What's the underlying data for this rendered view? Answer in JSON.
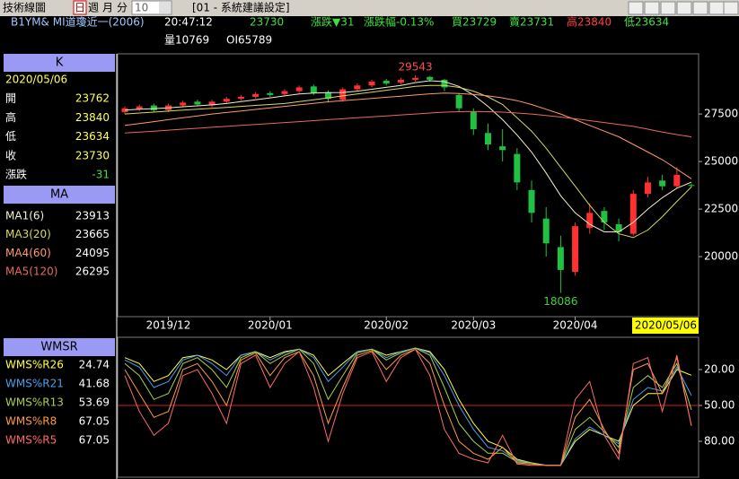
{
  "toolbar": {
    "title": "技術線圖",
    "day": "日",
    "week": "週",
    "month": "月",
    "minute": "分",
    "count": "10",
    "tab": "[01 - 系統建議設定]"
  },
  "quote": {
    "symbol": "B1YM& MI道瓊近一(2006)",
    "time": "20:47:12",
    "last": "23730",
    "change": "漲跌▼31",
    "change_pct": "漲跌幅-0.13%",
    "bid": "買23729",
    "ask": "賣23731",
    "high": "高23840",
    "low": "低23634",
    "volume": "量10769",
    "oi": "OI65789"
  },
  "k_panel": {
    "header": "K",
    "labels": [
      "開",
      "高",
      "低",
      "收",
      "漲跌"
    ],
    "change": -31
  },
  "ma_panel": {
    "header": "MA"
  },
  "wms_panel": {
    "header": "WMSR"
  },
  "chart_data": [
    {
      "type": "candlestick",
      "up_color": "#ff3030",
      "down_color": "#20c040",
      "categories": [
        null,
        null,
        null,
        "2019/12",
        null,
        null,
        null,
        null,
        null,
        null,
        "2020/01",
        null,
        null,
        null,
        null,
        null,
        null,
        null,
        "2020/02",
        null,
        null,
        null,
        null,
        null,
        "2020/03",
        null,
        null,
        null,
        null,
        null,
        null,
        "2020/04",
        null,
        null,
        null,
        null,
        null,
        null,
        null,
        "2020/05/06"
      ],
      "open": [
        27600,
        27750,
        27950,
        27700,
        27950,
        28150,
        27950,
        28150,
        28300,
        28400,
        28600,
        28550,
        28700,
        28950,
        28650,
        28250,
        28800,
        29000,
        29250,
        29150,
        29300,
        29450,
        29300,
        28500,
        27600,
        26500,
        25800,
        25400,
        23500,
        22000,
        20500,
        19200,
        21500,
        22400,
        21700,
        21200,
        23300,
        24000,
        23700,
        23762
      ],
      "high": [
        27900,
        28000,
        28050,
        28050,
        28200,
        28250,
        28250,
        28400,
        28500,
        28650,
        28700,
        28800,
        29000,
        29050,
        28750,
        28900,
        29100,
        29300,
        29350,
        29400,
        29543,
        29500,
        29350,
        28600,
        27800,
        27000,
        26700,
        25700,
        24000,
        22600,
        21100,
        21800,
        22800,
        22600,
        22000,
        23500,
        24200,
        24300,
        24700,
        23840
      ],
      "low": [
        27500,
        27650,
        27600,
        27600,
        27850,
        27900,
        27850,
        28050,
        28200,
        28300,
        28400,
        28450,
        28600,
        28500,
        28100,
        28150,
        28700,
        28900,
        29000,
        29050,
        29200,
        29200,
        28700,
        27600,
        26400,
        25600,
        25000,
        23500,
        21800,
        20000,
        18086,
        19000,
        21200,
        21400,
        20800,
        21100,
        23100,
        23500,
        23600,
        23634
      ],
      "close": [
        27800,
        27900,
        27700,
        27950,
        28100,
        28000,
        28150,
        28300,
        28400,
        28550,
        28500,
        28700,
        28900,
        28600,
        28300,
        28800,
        29000,
        29200,
        29100,
        29300,
        29400,
        29300,
        28900,
        27800,
        26700,
        25900,
        25600,
        23900,
        22300,
        20700,
        19300,
        21600,
        22300,
        21800,
        21300,
        23300,
        23900,
        23700,
        24300,
        23730
      ],
      "series": [
        {
          "name": "MA1(6)",
          "color": "#f0f0d0",
          "values": [
            27700,
            27750,
            27780,
            27820,
            27880,
            27930,
            27980,
            28050,
            28150,
            28250,
            28350,
            28450,
            28550,
            28600,
            28620,
            28630,
            28700,
            28800,
            28900,
            29000,
            29150,
            29250,
            29200,
            28950,
            28500,
            27900,
            27200,
            26400,
            25500,
            24400,
            23200,
            22300,
            21700,
            21300,
            21300,
            21800,
            22500,
            23100,
            23600,
            23913
          ]
        },
        {
          "name": "MA3(20)",
          "color": "#d8d860",
          "values": [
            27500,
            27550,
            27600,
            27650,
            27700,
            27750,
            27800,
            27850,
            27900,
            27950,
            28000,
            28050,
            28150,
            28250,
            28350,
            28450,
            28550,
            28650,
            28750,
            28850,
            28950,
            29000,
            29000,
            28900,
            28700,
            28400,
            28000,
            27300,
            26600,
            25700,
            24700,
            23700,
            22700,
            21800,
            21200,
            21000,
            21400,
            22100,
            22900,
            23665
          ]
        },
        {
          "name": "MA4(60)",
          "color": "#ff9a6a",
          "values": [
            26900,
            27000,
            27100,
            27200,
            27300,
            27400,
            27500,
            27580,
            27660,
            27740,
            27820,
            27900,
            27980,
            28060,
            28140,
            28200,
            28260,
            28320,
            28380,
            28440,
            28500,
            28560,
            28600,
            28580,
            28530,
            28450,
            28350,
            28200,
            28000,
            27750,
            27500,
            27200,
            26900,
            26600,
            26300,
            25900,
            25500,
            25100,
            24600,
            24095
          ]
        },
        {
          "name": "MA5(120)",
          "color": "#e86a5a",
          "values": [
            26500,
            26550,
            26600,
            26650,
            26700,
            26750,
            26800,
            26850,
            26900,
            26950,
            27000,
            27050,
            27100,
            27150,
            27200,
            27250,
            27300,
            27350,
            27400,
            27450,
            27500,
            27550,
            27600,
            27620,
            27630,
            27620,
            27600,
            27550,
            27500,
            27420,
            27340,
            27250,
            27150,
            27050,
            26950,
            26850,
            26700,
            26550,
            26420,
            26295
          ]
        }
      ],
      "ylim": [
        16890,
        30570
      ],
      "yticks": [
        20000,
        22500,
        25000,
        27500
      ]
    },
    {
      "type": "line",
      "inverted": true,
      "ref_line": 50,
      "series": [
        {
          "name": "WMS%R26",
          "color": "#ffff40",
          "values": [
            10,
            15,
            30,
            25,
            10,
            8,
            12,
            20,
            8,
            5,
            10,
            5,
            3,
            8,
            25,
            15,
            5,
            3,
            8,
            5,
            2,
            5,
            20,
            45,
            65,
            80,
            85,
            95,
            98,
            100,
            100,
            80,
            70,
            75,
            80,
            50,
            40,
            40,
            20,
            24.74
          ]
        },
        {
          "name": "WMS%R21",
          "color": "#4a9ff0",
          "values": [
            12,
            18,
            35,
            30,
            12,
            8,
            15,
            25,
            8,
            5,
            12,
            6,
            3,
            10,
            30,
            18,
            5,
            3,
            10,
            5,
            2,
            6,
            25,
            50,
            70,
            85,
            88,
            96,
            98,
            100,
            100,
            78,
            68,
            75,
            82,
            45,
            35,
            38,
            18,
            41.68
          ]
        },
        {
          "name": "WMS%R13",
          "color": "#a8d048",
          "values": [
            15,
            25,
            45,
            40,
            15,
            10,
            20,
            35,
            10,
            5,
            15,
            8,
            3,
            15,
            45,
            25,
            6,
            3,
            12,
            6,
            2,
            8,
            35,
            65,
            80,
            90,
            90,
            97,
            98,
            100,
            100,
            70,
            60,
            72,
            85,
            35,
            25,
            35,
            15,
            53.69
          ]
        },
        {
          "name": "WMS%R8",
          "color": "#ff9a40",
          "values": [
            20,
            40,
            60,
            55,
            20,
            15,
            30,
            50,
            12,
            6,
            25,
            10,
            5,
            25,
            65,
            35,
            8,
            4,
            20,
            8,
            3,
            15,
            50,
            80,
            90,
            95,
            85,
            98,
            99,
            100,
            100,
            60,
            45,
            70,
            90,
            20,
            15,
            40,
            10,
            67.05
          ]
        },
        {
          "name": "WMS%R5",
          "color": "#ff6a6a",
          "values": [
            25,
            55,
            75,
            65,
            25,
            20,
            40,
            65,
            15,
            8,
            35,
            15,
            5,
            35,
            80,
            40,
            10,
            5,
            30,
            10,
            3,
            25,
            70,
            90,
            95,
            98,
            75,
            99,
            100,
            100,
            100,
            45,
            30,
            75,
            95,
            15,
            10,
            55,
            8,
            67.05
          ]
        }
      ],
      "ylim": [
        -5.5,
        110
      ],
      "yticks": [
        {
          "value": 20,
          "label": "20.00"
        },
        {
          "value": 50,
          "label": "50.00"
        },
        {
          "value": 80,
          "label": "80.00"
        }
      ]
    }
  ]
}
